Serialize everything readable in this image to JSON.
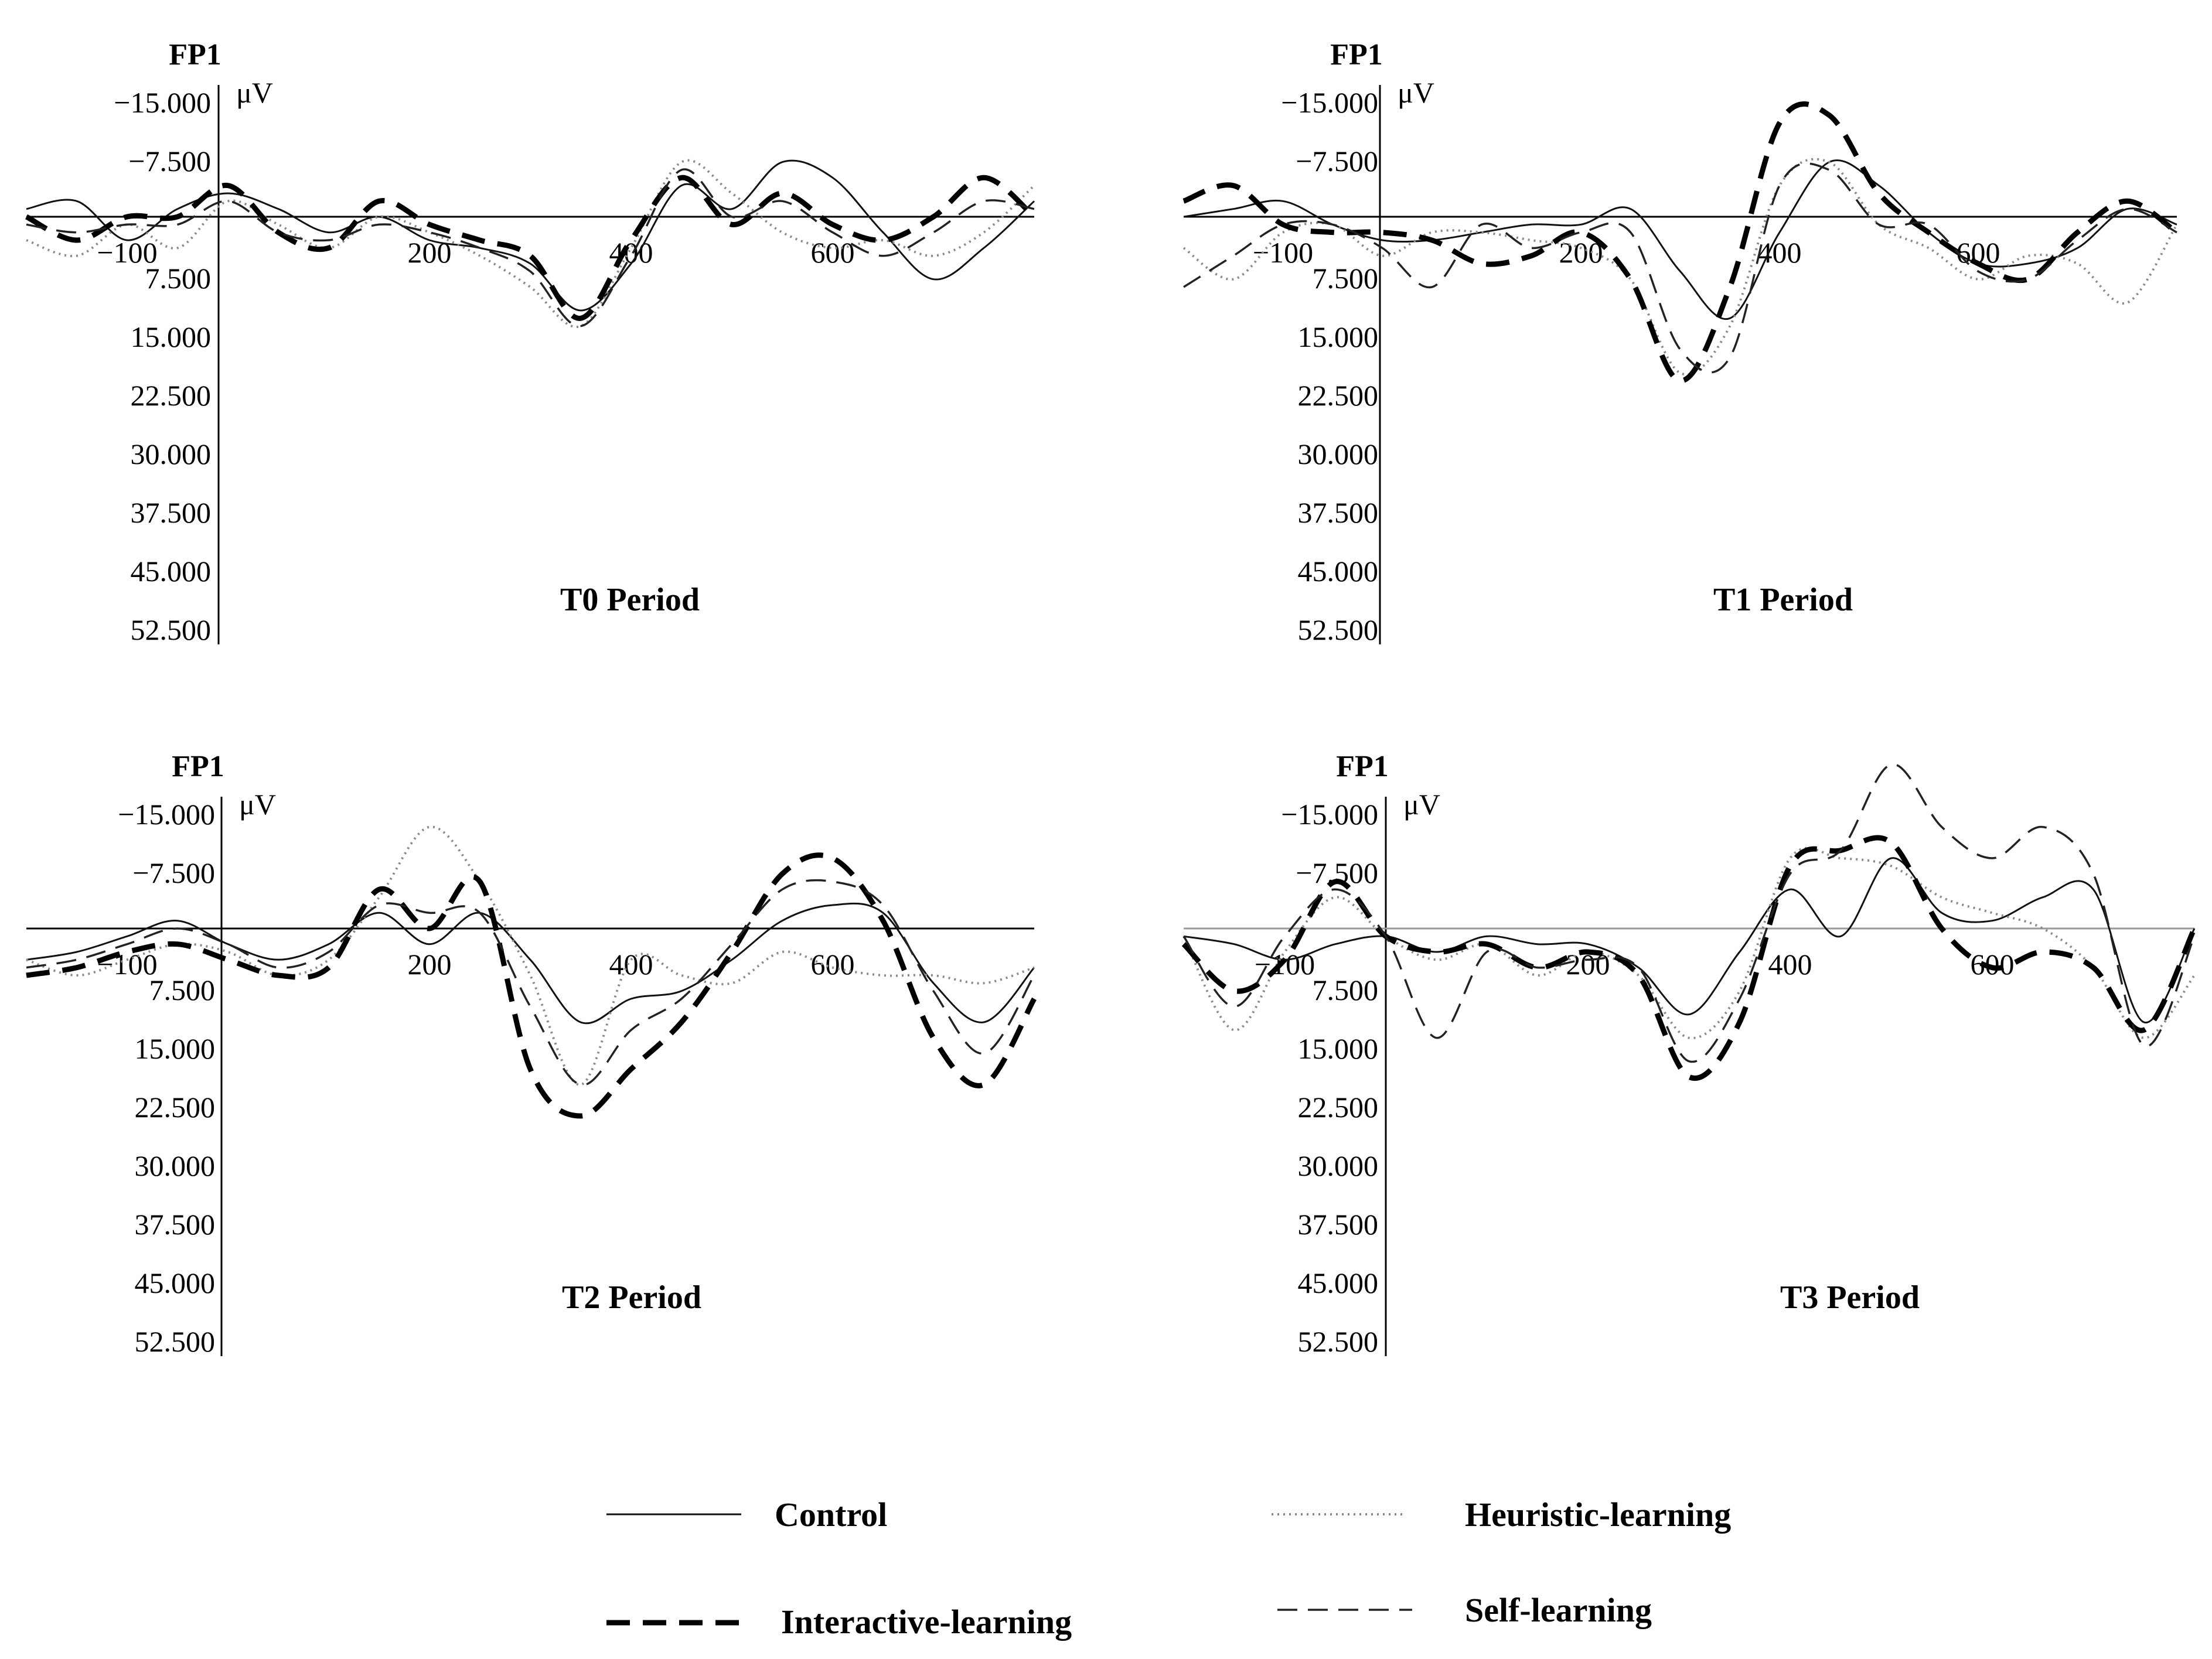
{
  "chart_data": [
    {
      "type": "line",
      "title": "T0 Period",
      "channel": "FP1",
      "unit": "μV",
      "y_ticks": [
        "−15.000",
        "−7.500",
        "7.500",
        "15.000",
        "22.500",
        "30.000",
        "37.500",
        "45.000",
        "52.500"
      ],
      "x_ticks": [
        "−100",
        "200",
        "400",
        "600"
      ],
      "y_inverted": true,
      "xlim": [
        -200,
        800
      ],
      "ylim": [
        -15,
        52.5
      ],
      "x": [
        -200,
        -150,
        -100,
        -50,
        0,
        50,
        100,
        150,
        200,
        250,
        300,
        350,
        400,
        450,
        500,
        550,
        600,
        650,
        700,
        750,
        800
      ],
      "series": [
        {
          "name": "Control",
          "style": "solid",
          "values": [
            -1,
            -2,
            3,
            -1,
            -3,
            -1,
            2,
            0,
            3,
            4,
            6,
            12,
            6,
            -4,
            -1,
            -7,
            -5,
            2,
            8,
            4,
            -2
          ]
        },
        {
          "name": "Heuristic-learning",
          "style": "dotted",
          "values": [
            3,
            5,
            1,
            4,
            -2,
            1,
            4,
            0,
            2,
            5,
            9,
            14,
            4,
            -7,
            -3,
            2,
            4,
            3,
            5,
            2,
            -4
          ]
        },
        {
          "name": "Interactive-learning",
          "style": "bold-dashed",
          "values": [
            0,
            3,
            0,
            0,
            -4,
            2,
            4,
            -2,
            1,
            3,
            5,
            13,
            3,
            -5,
            1,
            -3,
            1,
            3,
            0,
            -5,
            0
          ]
        },
        {
          "name": "Self-learning",
          "style": "dashed",
          "values": [
            1,
            2,
            1,
            1,
            -2,
            2,
            3,
            1,
            2,
            4,
            7,
            14,
            5,
            -6,
            0,
            -2,
            2,
            5,
            2,
            -2,
            -1
          ]
        }
      ]
    },
    {
      "type": "line",
      "title": "T1 Period",
      "channel": "FP1",
      "unit": "μV",
      "y_ticks": [
        "−15.000",
        "−7.500",
        "7.500",
        "15.000",
        "22.500",
        "30.000",
        "37.500",
        "45.000",
        "52.500"
      ],
      "x_ticks": [
        "−100",
        "200",
        "400",
        "600"
      ],
      "y_inverted": true,
      "xlim": [
        -200,
        800
      ],
      "ylim": [
        -15,
        52.5
      ],
      "x": [
        -200,
        -150,
        -100,
        -50,
        0,
        50,
        100,
        150,
        200,
        250,
        300,
        350,
        400,
        450,
        500,
        550,
        600,
        650,
        700,
        750,
        800
      ],
      "series": [
        {
          "name": "Control",
          "style": "solid",
          "values": [
            0,
            -1,
            -2,
            1,
            3,
            3,
            2,
            1,
            1,
            -1,
            7,
            13,
            2,
            -7,
            -4,
            2,
            6,
            6,
            4,
            -1,
            1
          ]
        },
        {
          "name": "Heuristic-learning",
          "style": "dotted",
          "values": [
            4,
            8,
            2,
            1,
            5,
            2,
            2,
            3,
            4,
            8,
            20,
            14,
            -4,
            -7,
            1,
            4,
            8,
            5,
            6,
            11,
            1
          ]
        },
        {
          "name": "Interactive-learning",
          "style": "bold-dashed",
          "values": [
            -2,
            -4,
            1,
            2,
            2,
            3,
            6,
            5,
            2,
            8,
            21,
            9,
            -12,
            -13,
            -3,
            2,
            6,
            8,
            2,
            -2,
            2
          ]
        },
        {
          "name": "Self-learning",
          "style": "dashed",
          "values": [
            9,
            5,
            1,
            1,
            4,
            9,
            1,
            4,
            2,
            2,
            17,
            18,
            -4,
            -6,
            1,
            1,
            7,
            8,
            3,
            -1,
            2
          ]
        }
      ]
    },
    {
      "type": "line",
      "title": "T2 Period",
      "channel": "FP1",
      "unit": "μV",
      "y_ticks": [
        "−15.000",
        "−7.500",
        "7.500",
        "15.000",
        "22.500",
        "30.000",
        "37.500",
        "45.000",
        "52.500"
      ],
      "x_ticks": [
        "−100",
        "200",
        "400",
        "600"
      ],
      "y_inverted": true,
      "xlim": [
        -200,
        800
      ],
      "ylim": [
        -15,
        52.5
      ],
      "x": [
        -200,
        -150,
        -100,
        -50,
        0,
        50,
        100,
        150,
        200,
        250,
        300,
        350,
        400,
        450,
        500,
        550,
        600,
        650,
        700,
        750,
        800
      ],
      "series": [
        {
          "name": "Control",
          "style": "solid",
          "values": [
            4,
            3,
            1,
            -1,
            2,
            4,
            2,
            -2,
            2,
            -2,
            4,
            12,
            9,
            8,
            4,
            -1,
            -3,
            -2,
            7,
            12,
            5
          ]
        },
        {
          "name": "Heuristic-learning",
          "style": "dotted",
          "values": [
            4,
            6,
            4,
            2,
            3,
            6,
            4,
            -4,
            -13,
            -6,
            6,
            20,
            4,
            6,
            7,
            3,
            5,
            6,
            6,
            7,
            5
          ]
        },
        {
          "name": "Interactive-learning",
          "style": "bold-dashed",
          "values": [
            6,
            5,
            3,
            2,
            4,
            6,
            5,
            -5,
            0,
            -6,
            18,
            24,
            18,
            12,
            3,
            -7,
            -9,
            -1,
            14,
            20,
            9
          ]
        },
        {
          "name": "Self-learning",
          "style": "dashed",
          "values": [
            5,
            4,
            2,
            0,
            2,
            5,
            3,
            -3,
            -2,
            -2,
            10,
            20,
            13,
            9,
            2,
            -5,
            -6,
            -3,
            8,
            16,
            6
          ]
        }
      ]
    },
    {
      "type": "line",
      "title": "T3 Period",
      "channel": "FP1",
      "unit": "μV",
      "y_ticks": [
        "−15.000",
        "−7.500",
        "7.500",
        "15.000",
        "22.500",
        "30.000",
        "37.500",
        "45.000",
        "52.500"
      ],
      "x_ticks": [
        "−100",
        "200",
        "400",
        "600"
      ],
      "y_inverted": true,
      "xlim": [
        -200,
        800
      ],
      "ylim": [
        -15,
        52.5
      ],
      "x": [
        -200,
        -150,
        -100,
        -50,
        0,
        50,
        100,
        150,
        200,
        250,
        300,
        350,
        400,
        450,
        500,
        550,
        600,
        650,
        700,
        750,
        800
      ],
      "series": [
        {
          "name": "Control",
          "style": "solid",
          "values": [
            1,
            2,
            4,
            2,
            1,
            3,
            1,
            2,
            2,
            5,
            11,
            3,
            -5,
            1,
            -9,
            -2,
            -1,
            -4,
            -5,
            12,
            0
          ]
        },
        {
          "name": "Heuristic-learning",
          "style": "dotted",
          "values": [
            1,
            13,
            3,
            -4,
            1,
            4,
            2,
            6,
            3,
            6,
            14,
            8,
            -9,
            -9,
            -8,
            -4,
            -2,
            0,
            5,
            14,
            6
          ]
        },
        {
          "name": "Interactive-learning",
          "style": "bold-dashed",
          "values": [
            2,
            8,
            4,
            -6,
            1,
            3,
            2,
            5,
            3,
            6,
            19,
            12,
            -8,
            -10,
            -11,
            0,
            5,
            3,
            5,
            13,
            0
          ]
        },
        {
          "name": "Self-learning",
          "style": "dashed",
          "values": [
            1,
            10,
            1,
            -5,
            1,
            14,
            3,
            5,
            4,
            5,
            17,
            9,
            -7,
            -10,
            -21,
            -13,
            -9,
            -13,
            -7,
            15,
            1
          ]
        }
      ]
    }
  ]
}
